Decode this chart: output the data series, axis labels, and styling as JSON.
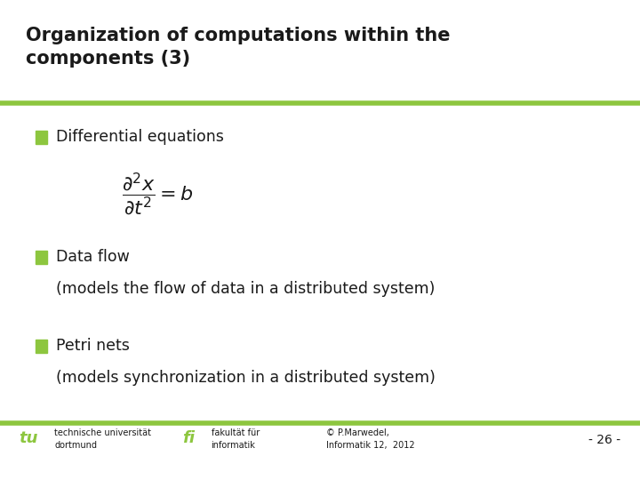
{
  "title_line1": "Organization of computations within the",
  "title_line2": "components (3)",
  "title_color": "#1a1a1a",
  "accent_color": "#8dc63f",
  "bullet_color": "#8dc63f",
  "text_color": "#1a1a1a",
  "bullet1_main": "Differential equations",
  "bullet2_main": "Data flow",
  "bullet2_sub": "(models the flow of data in a distributed system)",
  "bullet3_main": "Petri nets",
  "bullet3_sub": "(models synchronization in a distributed system)",
  "footer_left1": "technische universität",
  "footer_left2": "dortmund",
  "footer_mid1": "fakultät für",
  "footer_mid2": "informatik",
  "footer_right1": "© P.Marwedel,",
  "footer_right2": "Informatik 12,  2012",
  "footer_page": "- 26 -",
  "bg_color": "#ffffff"
}
